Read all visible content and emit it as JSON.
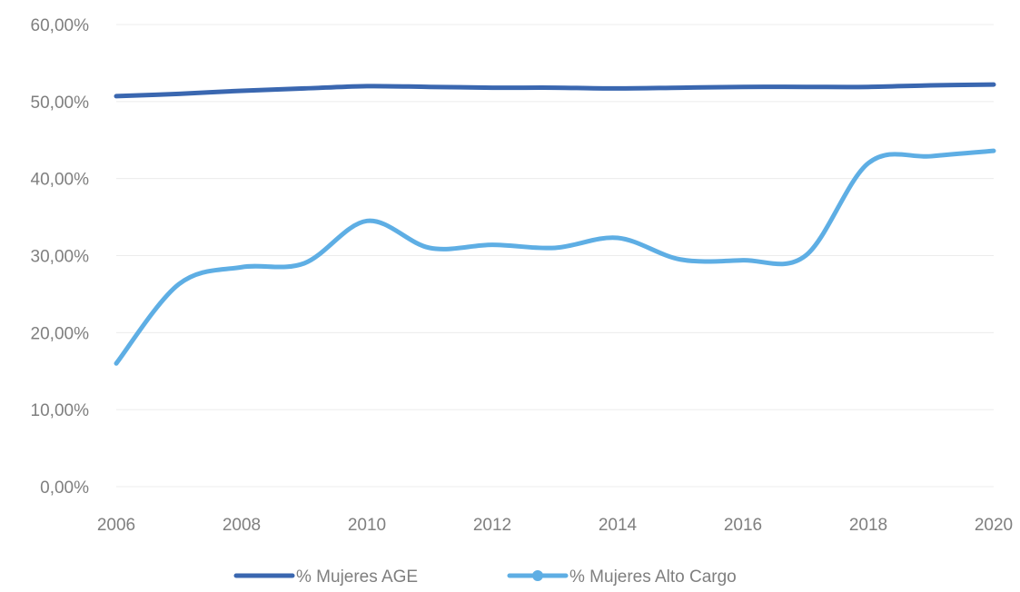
{
  "chart_data": {
    "type": "line",
    "x": [
      2006,
      2007,
      2008,
      2009,
      2010,
      2011,
      2012,
      2013,
      2014,
      2015,
      2016,
      2017,
      2018,
      2019,
      2020
    ],
    "x_ticks": [
      "2006",
      "2008",
      "2010",
      "2012",
      "2014",
      "2016",
      "2018",
      "2020"
    ],
    "y_ticks": [
      "0,00%",
      "10,00%",
      "20,00%",
      "30,00%",
      "40,00%",
      "50,00%",
      "60,00%"
    ],
    "ylim": [
      0,
      60
    ],
    "xlim": [
      2006,
      2020
    ],
    "grid": true,
    "legend_position": "bottom",
    "smooth": true,
    "series": [
      {
        "name": "% Mujeres AGE",
        "color": "#3a67b0",
        "marker": false,
        "values": [
          50.7,
          51.0,
          51.4,
          51.7,
          52.0,
          51.9,
          51.8,
          51.8,
          51.7,
          51.8,
          51.9,
          51.9,
          51.9,
          52.1,
          52.2
        ]
      },
      {
        "name": "% Mujeres Alto Cargo",
        "color": "#5eaee4",
        "marker": true,
        "values": [
          16.0,
          26.3,
          28.5,
          29.0,
          34.5,
          31.0,
          31.4,
          31.0,
          32.3,
          29.5,
          29.4,
          30.0,
          42.0,
          42.9,
          43.6
        ]
      }
    ]
  }
}
